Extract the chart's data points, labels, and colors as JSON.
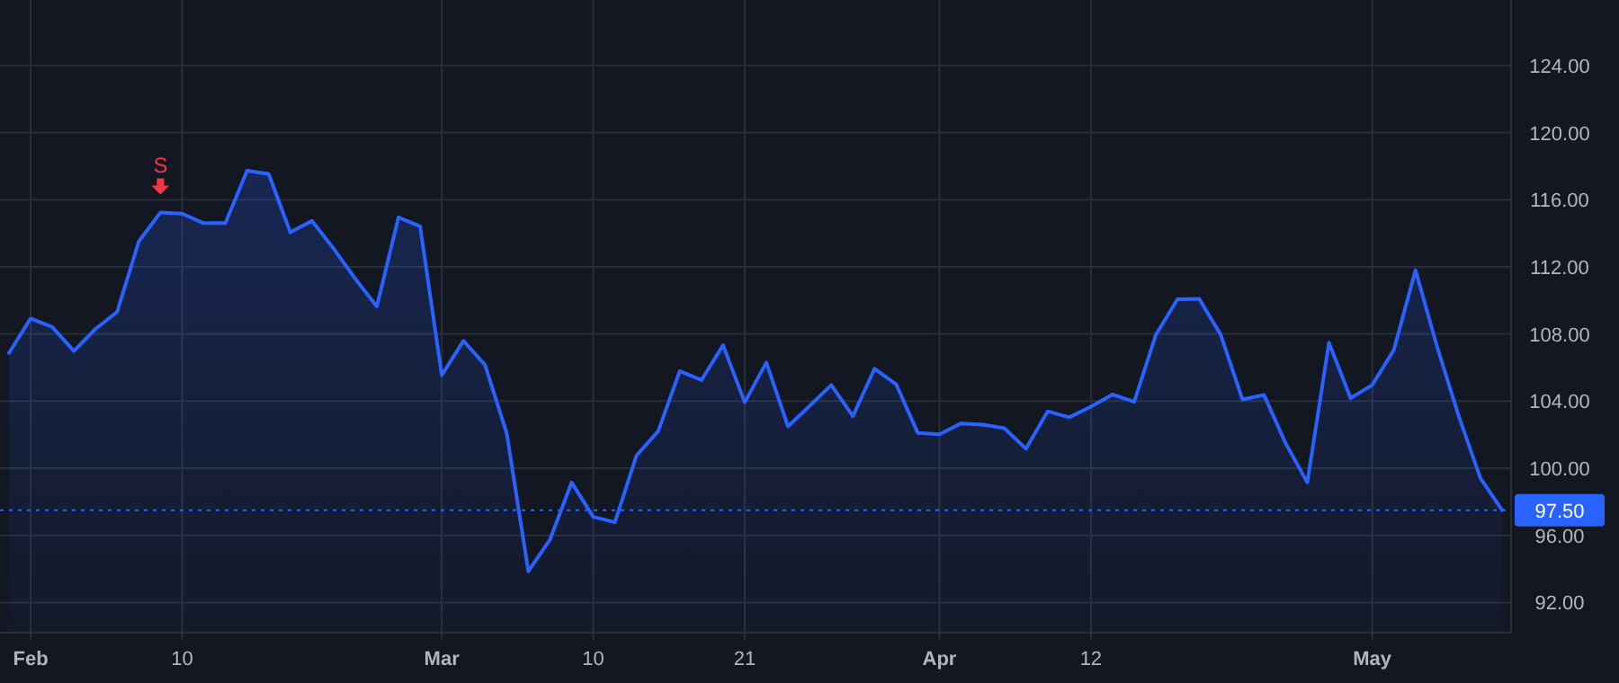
{
  "chart_data": {
    "type": "area",
    "categories": [
      null,
      "Feb",
      null,
      null,
      null,
      null,
      null,
      null,
      "10",
      null,
      null,
      null,
      null,
      null,
      null,
      null,
      null,
      null,
      null,
      null,
      "Mar",
      null,
      null,
      null,
      null,
      null,
      null,
      "10",
      null,
      null,
      null,
      null,
      null,
      null,
      "21",
      null,
      null,
      null,
      null,
      null,
      null,
      null,
      null,
      "Apr",
      null,
      null,
      null,
      null,
      null,
      null,
      "12",
      null,
      null,
      null,
      null,
      null,
      null,
      null,
      null,
      null,
      null,
      null,
      null,
      "May",
      null,
      null,
      null,
      null,
      null,
      null
    ],
    "series": [
      {
        "color": "#2962ff",
        "values": [
          106.87,
          108.92,
          108.41,
          106.98,
          108.3,
          109.32,
          113.52,
          115.24,
          115.17,
          114.6,
          114.6,
          117.72,
          117.54,
          114.06,
          114.74,
          113.09,
          111.29,
          109.64,
          114.95,
          114.41,
          105.54,
          107.59,
          106.15,
          102.1,
          93.86,
          95.74,
          99.15,
          97.1,
          96.78,
          100.76,
          102.2,
          105.79,
          105.25,
          107.33,
          103.93,
          106.3,
          102.49,
          103.71,
          104.96,
          103.1,
          105.93,
          105.0,
          102.1,
          102.02,
          102.67,
          102.6,
          102.38,
          101.16,
          103.39,
          103.03,
          103.67,
          104.39,
          103.96,
          107.95,
          110.07,
          110.1,
          107.95,
          104.1,
          104.36,
          101.48,
          99.15,
          107.48,
          104.18,
          104.96,
          107.05,
          111.8,
          107.23,
          103.1,
          99.4,
          97.5
        ]
      }
    ],
    "ylim": [
      90.2,
      127.9
    ],
    "yticks": [
      {
        "value": 92,
        "label": "92.00"
      },
      {
        "value": 96,
        "label": "96.00"
      },
      {
        "value": 100,
        "label": "100.00"
      },
      {
        "value": 104,
        "label": "104.00"
      },
      {
        "value": 108,
        "label": "108.00"
      },
      {
        "value": 112,
        "label": "112.00"
      },
      {
        "value": 116,
        "label": "116.00"
      },
      {
        "value": 120,
        "label": "120.00"
      },
      {
        "value": 124,
        "label": "124.00"
      }
    ],
    "grid": true,
    "ref_lines": [
      {
        "axis": "y",
        "value": 97.5,
        "label": "97.50",
        "color": "#2962ff",
        "line_style": "dotted"
      }
    ],
    "annotations": [
      "S"
    ]
  }
}
